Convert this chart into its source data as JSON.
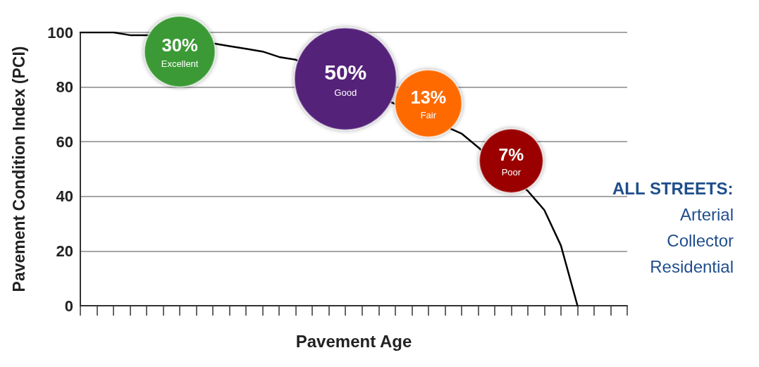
{
  "chart_data": {
    "type": "line",
    "xlabel": "Pavement Age",
    "ylabel": "Pavement Condition Index (PCI)",
    "categories": [
      null,
      null,
      null,
      null,
      null,
      null,
      null,
      null,
      null,
      null,
      null,
      null,
      null,
      null,
      null,
      null,
      null,
      null,
      null,
      null,
      null,
      null,
      null,
      null,
      null,
      null,
      null,
      null,
      null,
      null,
      null,
      null,
      null,
      null
    ],
    "ylim": [
      0,
      100
    ],
    "yticks": [
      0,
      20,
      40,
      60,
      80,
      100
    ],
    "grid": "y",
    "series": [
      {
        "color": "#000000",
        "marker": "none",
        "values": [
          100,
          100,
          100,
          99,
          99,
          null,
          null,
          null,
          96,
          95,
          94,
          93,
          91,
          90,
          null,
          null,
          null,
          null,
          null,
          null,
          null,
          null,
          null,
          63,
          58,
          null,
          null,
          42,
          35,
          22,
          0,
          null,
          null,
          null
        ]
      },
      {
        "type": "bubble",
        "values": [
          null,
          null,
          null,
          null,
          null,
          null,
          93,
          null,
          null,
          null,
          null,
          null,
          null,
          null,
          null,
          null,
          83,
          null,
          null,
          null,
          null,
          74,
          null,
          null,
          null,
          null,
          53,
          null,
          null,
          null,
          null,
          null,
          null,
          null
        ],
        "sizes": [
          null,
          null,
          null,
          null,
          null,
          null,
          0.48,
          null,
          null,
          null,
          null,
          null,
          null,
          null,
          null,
          null,
          1,
          null,
          null,
          null,
          null,
          0.43,
          null,
          null,
          null,
          null,
          0.39,
          null,
          null,
          null,
          null,
          null,
          null,
          null
        ],
        "colors": [
          null,
          null,
          null,
          null,
          null,
          null,
          "#3a9a35",
          null,
          null,
          null,
          null,
          null,
          null,
          null,
          null,
          null,
          "#55247a",
          null,
          null,
          null,
          null,
          "#ff6a00",
          null,
          null,
          null,
          null,
          "#9a0000",
          null,
          null,
          null,
          null,
          null,
          null,
          null
        ]
      }
    ],
    "annotations": [
      {
        "text": "30%",
        "y": 93
      },
      {
        "text": "Excellent",
        "y": 93
      },
      {
        "text": "50%",
        "y": 83
      },
      {
        "text": "Good",
        "y": 83
      },
      {
        "text": "13%",
        "y": 74
      },
      {
        "text": "Fair",
        "y": 74
      },
      {
        "text": "7%",
        "y": 53
      },
      {
        "text": "Poor",
        "y": 53
      },
      "ALL STREETS:",
      "Arterial",
      "Collector",
      "Residential"
    ]
  }
}
